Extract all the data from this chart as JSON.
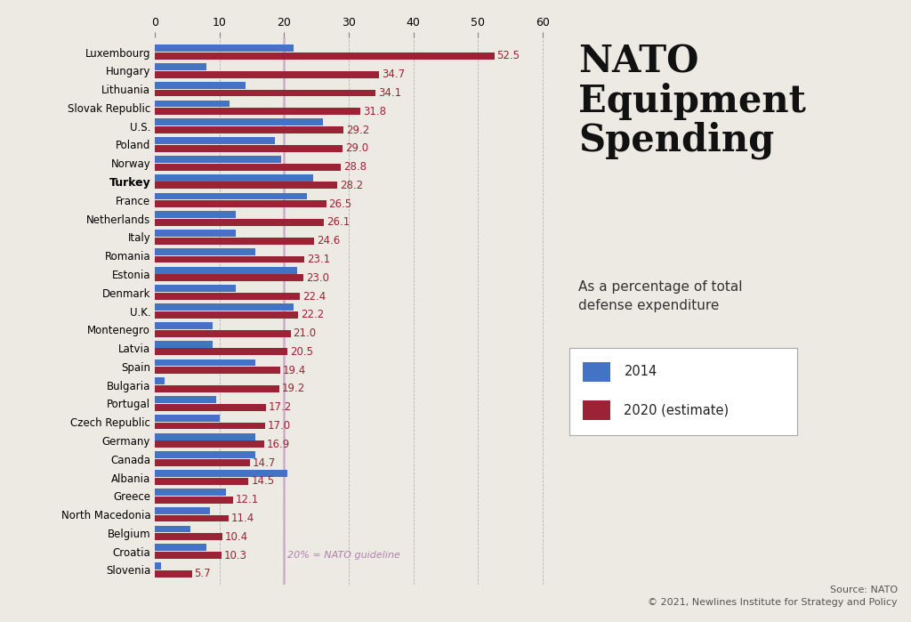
{
  "countries": [
    "Luxembourg",
    "Hungary",
    "Lithuania",
    "Slovak Republic",
    "U.S.",
    "Poland",
    "Norway",
    "Turkey",
    "France",
    "Netherlands",
    "Italy",
    "Romania",
    "Estonia",
    "Denmark",
    "U.K.",
    "Montenegro",
    "Latvia",
    "Spain",
    "Bulgaria",
    "Portugal",
    "Czech Republic",
    "Germany",
    "Canada",
    "Albania",
    "Greece",
    "North Macedonia",
    "Belgium",
    "Croatia",
    "Slovenia"
  ],
  "val_2020": [
    52.5,
    34.7,
    34.1,
    31.8,
    29.2,
    29.0,
    28.8,
    28.2,
    26.5,
    26.1,
    24.6,
    23.1,
    23.0,
    22.4,
    22.2,
    21.0,
    20.5,
    19.4,
    19.2,
    17.2,
    17.0,
    16.9,
    14.7,
    14.5,
    12.1,
    11.4,
    10.4,
    10.3,
    5.7
  ],
  "val_2014": [
    21.5,
    8.0,
    14.0,
    11.5,
    26.0,
    18.5,
    19.5,
    24.5,
    23.5,
    12.5,
    12.5,
    15.5,
    22.0,
    12.5,
    21.5,
    9.0,
    9.0,
    15.5,
    1.5,
    9.5,
    10.0,
    15.5,
    15.5,
    20.5,
    11.0,
    8.5,
    5.5,
    8.0,
    1.0
  ],
  "bold_country": "Turkey",
  "color_2014": "#4472c4",
  "color_2020": "#9b2335",
  "nato_guideline": 20.0,
  "nato_line_color": "#c8a0c8",
  "nato_label": "20% = NATO guideline",
  "nato_label_color": "#b080b0",
  "background_color": "#edeae4",
  "title": "NATO\nEquipment\nSpending",
  "subtitle": "As a percentage of total\ndefense expenditure",
  "source_text": "Source: NATO\n© 2021, Newlines Institute for Strategy and Policy",
  "xlim": [
    0,
    62
  ],
  "bar_height": 0.38,
  "value_label_color": "#9b2335",
  "value_label_fontsize": 8.5,
  "tick_fontsize": 9,
  "country_fontsize": 8.5,
  "title_fontsize": 30,
  "subtitle_fontsize": 11,
  "legend_fontsize": 10.5
}
